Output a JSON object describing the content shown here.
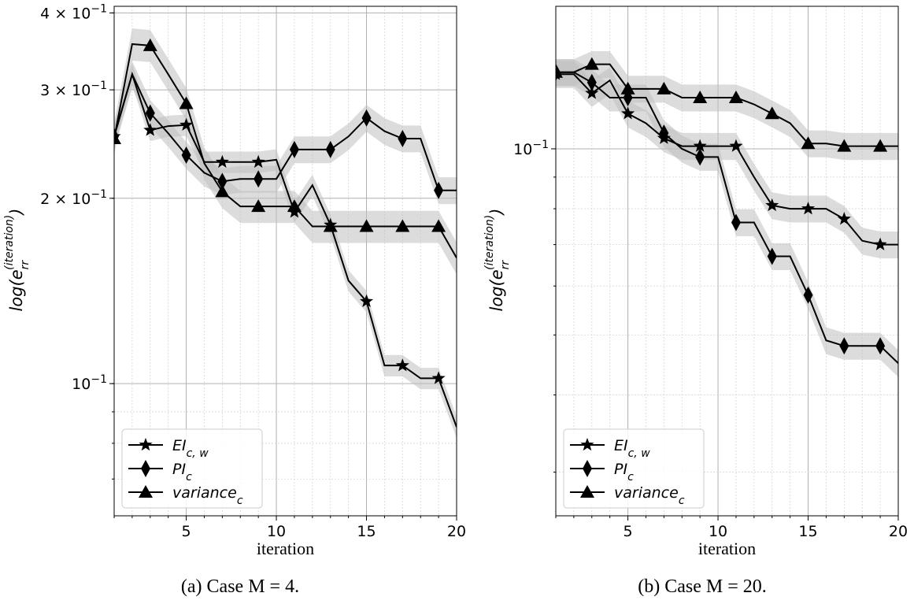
{
  "chart_data": [
    {
      "type": "line",
      "caption": "(a) Case M = 4.",
      "xlabel": "iteration",
      "ylabel": "log(e_rr^(iteration))",
      "yscale": "log",
      "xlim": [
        1,
        20
      ],
      "ylim": [
        0.061,
        0.41
      ],
      "grid": true,
      "legend_position": "lower-left",
      "x_ticks": [
        5,
        10,
        15,
        20
      ],
      "x_tick_labels": [
        "5",
        "10",
        "15",
        "20"
      ],
      "y_ticks": [
        0.1,
        0.2,
        0.3,
        0.4
      ],
      "y_tick_labels": [
        {
          "base": "10",
          "mant": "",
          "exp": "−1"
        },
        {
          "base": "2 × 10",
          "mant": "",
          "exp": "−1"
        },
        {
          "base": "3 × 10",
          "mant": "",
          "exp": "−1"
        },
        {
          "base": "4 × 10",
          "mant": "",
          "exp": "−1"
        }
      ],
      "band_color": "#bfbfbf",
      "series": [
        {
          "name": "EI_{c,w}",
          "marker": "star",
          "band": 0.04,
          "x": [
            1,
            2,
            3,
            4,
            5,
            6,
            7,
            8,
            9,
            10,
            11,
            12,
            13,
            14,
            15,
            16,
            17,
            18,
            19,
            20
          ],
          "y": [
            0.252,
            0.318,
            0.258,
            0.262,
            0.263,
            0.229,
            0.229,
            0.229,
            0.229,
            0.231,
            0.19,
            0.21,
            0.181,
            0.147,
            0.136,
            0.107,
            0.107,
            0.102,
            0.102,
            0.085
          ]
        },
        {
          "name": "PI_c",
          "marker": "diamond",
          "band": 0.05,
          "x": [
            1,
            2,
            3,
            4,
            5,
            6,
            7,
            8,
            9,
            10,
            11,
            12,
            13,
            14,
            15,
            16,
            17,
            18,
            19,
            20
          ],
          "y": [
            0.252,
            0.318,
            0.275,
            0.255,
            0.235,
            0.22,
            0.213,
            0.215,
            0.215,
            0.215,
            0.24,
            0.24,
            0.24,
            0.252,
            0.27,
            0.257,
            0.25,
            0.25,
            0.206,
            0.206
          ]
        },
        {
          "name": "variance_c",
          "marker": "triangle",
          "band": 0.06,
          "x": [
            1,
            2,
            3,
            4,
            5,
            6,
            7,
            8,
            9,
            10,
            11,
            12,
            13,
            14,
            15,
            16,
            17,
            18,
            19,
            20
          ],
          "y": [
            0.25,
            0.356,
            0.354,
            0.318,
            0.285,
            0.228,
            0.205,
            0.194,
            0.194,
            0.194,
            0.194,
            0.18,
            0.18,
            0.18,
            0.18,
            0.18,
            0.18,
            0.18,
            0.18,
            0.16
          ]
        }
      ]
    },
    {
      "type": "line",
      "caption": "(b) Case M = 20.",
      "xlabel": "iteration",
      "ylabel": "log(e_rr^(iteration))",
      "yscale": "log",
      "xlim": [
        1,
        20
      ],
      "ylim": [
        0.0255,
        0.17
      ],
      "grid": true,
      "legend_position": "lower-left",
      "x_ticks": [
        5,
        10,
        15,
        20
      ],
      "x_tick_labels": [
        "5",
        "10",
        "15",
        "20"
      ],
      "y_ticks": [
        0.1
      ],
      "y_tick_labels": [
        {
          "base": "10",
          "mant": "",
          "exp": "−1"
        }
      ],
      "band_color": "#bfbfbf",
      "series": [
        {
          "name": "EI_{c,w}",
          "marker": "star",
          "band": 0.05,
          "x": [
            1,
            2,
            3,
            4,
            5,
            6,
            7,
            8,
            9,
            10,
            11,
            12,
            13,
            14,
            15,
            16,
            17,
            18,
            19,
            20
          ],
          "y": [
            0.132,
            0.132,
            0.123,
            0.129,
            0.114,
            0.11,
            0.104,
            0.101,
            0.101,
            0.101,
            0.101,
            0.09,
            0.081,
            0.08,
            0.08,
            0.08,
            0.077,
            0.071,
            0.07,
            0.07
          ]
        },
        {
          "name": "PI_c",
          "marker": "diamond",
          "band": 0.05,
          "x": [
            1,
            2,
            3,
            4,
            5,
            6,
            7,
            8,
            9,
            10,
            11,
            12,
            13,
            14,
            15,
            16,
            17,
            18,
            19,
            20
          ],
          "y": [
            0.133,
            0.133,
            0.128,
            0.121,
            0.121,
            0.121,
            0.106,
            0.1,
            0.097,
            0.097,
            0.076,
            0.076,
            0.067,
            0.067,
            0.058,
            0.049,
            0.048,
            0.048,
            0.048,
            0.045
          ]
        },
        {
          "name": "variance_c",
          "marker": "triangle",
          "band": 0.05,
          "x": [
            1,
            2,
            3,
            4,
            5,
            6,
            7,
            8,
            9,
            10,
            11,
            12,
            13,
            14,
            15,
            16,
            17,
            18,
            19,
            20
          ],
          "y": [
            0.133,
            0.133,
            0.137,
            0.137,
            0.125,
            0.125,
            0.125,
            0.121,
            0.121,
            0.121,
            0.121,
            0.118,
            0.114,
            0.11,
            0.102,
            0.102,
            0.101,
            0.101,
            0.101,
            0.101
          ]
        }
      ]
    }
  ]
}
